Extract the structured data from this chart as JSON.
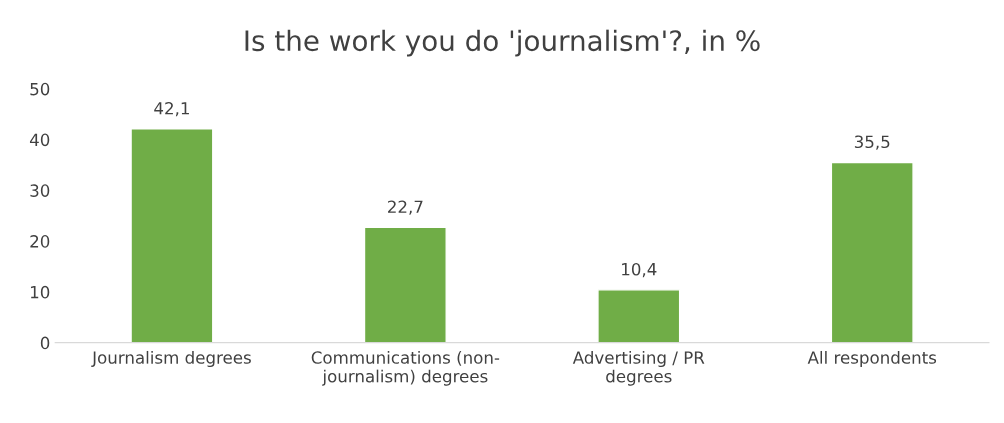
{
  "chart_data": {
    "type": "bar",
    "title": "Is the work you do 'journalism'?, in %",
    "categories": [
      "Journalism degrees",
      "Communications (non-\njournalism) degrees",
      "Advertising / PR\ndegrees",
      "All respondents"
    ],
    "values": [
      42.1,
      22.7,
      10.4,
      35.5
    ],
    "value_labels": [
      "42,1",
      "22,7",
      "10,4",
      "35,5"
    ],
    "color": "#70ad47",
    "ylim": [
      0,
      50
    ],
    "yticks": [
      0,
      10,
      20,
      30,
      40,
      50
    ],
    "grid": false,
    "legend": false
  }
}
